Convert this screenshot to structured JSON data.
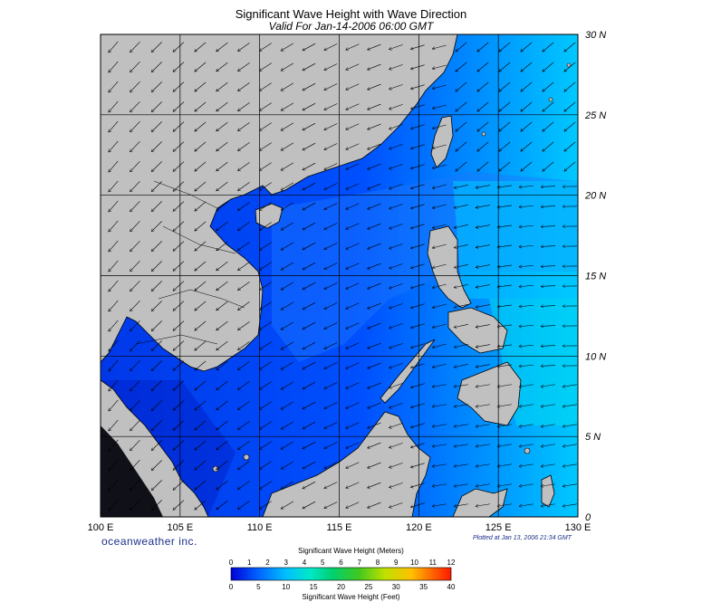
{
  "title": "Significant Wave Height with Wave Direction",
  "subtitle": "Valid For Jan-14-2006 06:00 GMT",
  "brand": "oceanweather inc.",
  "plotted": "Plotted at Jan 13, 2006 21:34 GMT",
  "lon_labels": [
    "100 E",
    "105 E",
    "110 E",
    "115 E",
    "120 E",
    "125 E",
    "130 E"
  ],
  "lat_labels": [
    "30 N",
    "25 N",
    "20 N",
    "15 N",
    "10 N",
    "5 N",
    "0"
  ],
  "legend": {
    "meters_label": "Significant Wave Height (Meters)",
    "feet_label": "Significant Wave Height (Feet)",
    "meters_ticks": [
      "0",
      "1",
      "2",
      "3",
      "4",
      "5",
      "6",
      "7",
      "8",
      "9",
      "10",
      "11",
      "12"
    ],
    "feet_ticks": [
      "0",
      "5",
      "10",
      "15",
      "20",
      "25",
      "30",
      "35",
      "40"
    ],
    "colors": [
      "#0000d8",
      "#0040ff",
      "#0080ff",
      "#00c0ff",
      "#00e8c8",
      "#00d080",
      "#20c020",
      "#80d000",
      "#d0e000",
      "#ffd000",
      "#ff8000",
      "#ff2000"
    ]
  },
  "map": {
    "land_color": "#c0c0c0",
    "wave_direction": "NE to SW (northeast monsoon)"
  }
}
